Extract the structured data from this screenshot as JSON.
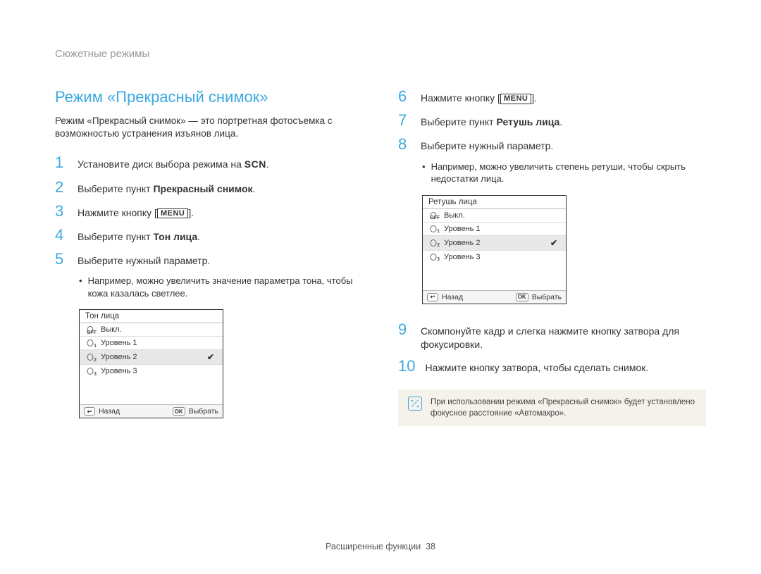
{
  "breadcrumb": "Сюжетные режимы",
  "title": "Режим «Прекрасный снимок»",
  "intro": "Режим «Прекрасный снимок» — это портретная фотосъемка с возможностью устранения изъянов лица.",
  "left_steps": {
    "s1": {
      "num": "1",
      "pre": "Установите диск выбора режима на ",
      "icon": "SCN",
      "post": "."
    },
    "s2": {
      "num": "2",
      "pre": "Выберите пункт ",
      "bold": "Прекрасный снимок",
      "post": "."
    },
    "s3": {
      "num": "3",
      "pre": "Нажмите кнопку ",
      "icon": "MENU",
      "post": "."
    },
    "s4": {
      "num": "4",
      "pre": "Выберите пункт ",
      "bold": "Тон лица",
      "post": "."
    },
    "s5": {
      "num": "5",
      "text": "Выберите нужный параметр."
    },
    "s5_sub": "Например, можно увеличить значение параметра тона, чтобы кожа казалась светлее."
  },
  "right_steps": {
    "s6": {
      "num": "6",
      "pre": "Нажмите кнопку ",
      "icon": "MENU",
      "post": "."
    },
    "s7": {
      "num": "7",
      "pre": "Выберите пункт ",
      "bold": "Ретушь лица",
      "post": "."
    },
    "s8": {
      "num": "8",
      "text": "Выберите нужный параметр."
    },
    "s8_sub": "Например, можно увеличить степень ретуши, чтобы скрыть недостатки лица.",
    "s9": {
      "num": "9",
      "text": "Скомпонуйте кадр и слегка нажмите кнопку затвора для фокусировки."
    },
    "s10": {
      "num": "10",
      "text": "Нажмите кнопку затвора, чтобы сделать снимок."
    }
  },
  "menu_left": {
    "header": "Тон лица",
    "items": [
      {
        "sub": "OFF",
        "label": "Выкл."
      },
      {
        "sub": "1",
        "label": "Уровень 1"
      },
      {
        "sub": "2",
        "label": "Уровень 2",
        "selected": true
      },
      {
        "sub": "3",
        "label": "Уровень 3"
      }
    ],
    "footer": {
      "back_key": "↩",
      "back": "Назад",
      "ok_key": "OK",
      "ok": "Выбрать"
    }
  },
  "menu_right": {
    "header": "Ретушь лица",
    "items": [
      {
        "sub": "OFF",
        "label": "Выкл."
      },
      {
        "sub": "1",
        "label": "Уровень 1"
      },
      {
        "sub": "2",
        "label": "Уровень 2",
        "selected": true
      },
      {
        "sub": "3",
        "label": "Уровень 3"
      }
    ],
    "footer": {
      "back_key": "↩",
      "back": "Назад",
      "ok_key": "OK",
      "ok": "Выбрать"
    }
  },
  "note": "При использовании режима «Прекрасный снимок» будет установлено фокусное расстояние «Автомакро».",
  "footer_text": "Расширенные функции",
  "footer_page": "38",
  "colors": {
    "accent": "#3ba9e0",
    "text": "#333333",
    "muted": "#999999",
    "note_bg": "#f5f1eb"
  }
}
